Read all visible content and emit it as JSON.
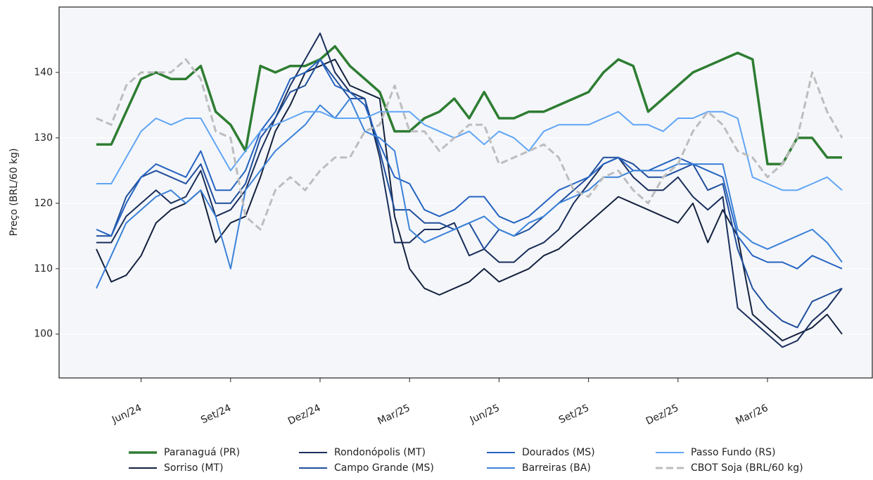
{
  "chart_data": {
    "type": "line",
    "y_label": "Preço (BRL/60 kg)",
    "categories": [
      null,
      null,
      null,
      "Jun/24",
      null,
      null,
      null,
      null,
      null,
      "Set/24",
      null,
      null,
      null,
      null,
      null,
      "Dez/24",
      null,
      null,
      null,
      null,
      null,
      "Mar/25",
      null,
      null,
      null,
      null,
      null,
      "Jun/25",
      null,
      null,
      null,
      null,
      null,
      "Set/25",
      null,
      null,
      null,
      null,
      null,
      "Dez/25",
      null,
      null,
      null,
      null,
      null,
      "Mar/26",
      null,
      null,
      null,
      null,
      null
    ],
    "ylim": [
      93.3,
      150
    ],
    "yticks": [
      100,
      110,
      120,
      130,
      140
    ],
    "grid": true,
    "legend": "bottom",
    "series": [
      {
        "name": "Paranaguá (PR)",
        "color": "#2e7d32",
        "width": 3.5,
        "values": [
          129,
          129,
          134,
          139,
          140,
          139,
          139,
          141,
          134,
          132,
          128,
          141,
          140,
          141,
          141,
          142,
          144,
          141,
          139,
          137,
          131,
          131,
          133,
          134,
          136,
          133,
          137,
          133,
          133,
          134,
          134,
          135,
          136,
          137,
          140,
          142,
          141,
          134,
          136,
          138,
          140,
          141,
          142,
          143,
          142,
          126,
          126,
          130,
          130,
          127,
          127
        ]
      },
      {
        "name": "Sorriso (MT)",
        "color": "#14213d",
        "width": 2,
        "values": [
          113,
          108,
          109,
          112,
          117,
          119,
          120,
          122,
          114,
          117,
          118,
          124,
          131,
          135,
          140,
          141,
          142,
          138,
          137,
          136,
          118,
          110,
          107,
          106,
          107,
          108,
          110,
          108,
          109,
          110,
          112,
          113,
          115,
          117,
          119,
          121,
          120,
          119,
          118,
          117,
          120,
          114,
          119,
          115,
          103,
          101,
          99,
          100,
          101,
          103,
          100
        ]
      },
      {
        "name": "Rondonópolis (MT)",
        "color": "#1a2e5a",
        "width": 2,
        "values": [
          114,
          114,
          118,
          120,
          122,
          120,
          121,
          125,
          118,
          119,
          122,
          128,
          133,
          138,
          142,
          146,
          140,
          137,
          136,
          127,
          114,
          114,
          116,
          116,
          117,
          112,
          113,
          111,
          111,
          113,
          114,
          116,
          120,
          123,
          126,
          127,
          124,
          122,
          122,
          124,
          121,
          119,
          121,
          104,
          102,
          100,
          98,
          99,
          102,
          104,
          107
        ]
      },
      {
        "name": "Campo Grande (MS)",
        "color": "#1f4e9a",
        "width": 2,
        "values": [
          115,
          115,
          121,
          124,
          125,
          124,
          123,
          126,
          120,
          120,
          123,
          130,
          133,
          137,
          138,
          142,
          139,
          136,
          136,
          128,
          119,
          119,
          117,
          117,
          116,
          117,
          113,
          116,
          115,
          116,
          118,
          120,
          122,
          124,
          127,
          127,
          126,
          124,
          124,
          125,
          126,
          122,
          123,
          113,
          107,
          104,
          102,
          101,
          105,
          106,
          107
        ]
      },
      {
        "name": "Dourados (MS)",
        "color": "#2563c0",
        "width": 2,
        "values": [
          116,
          115,
          120,
          124,
          126,
          125,
          124,
          128,
          122,
          122,
          125,
          131,
          134,
          139,
          140,
          142,
          138,
          137,
          135,
          129,
          124,
          123,
          119,
          118,
          119,
          121,
          121,
          118,
          117,
          118,
          120,
          122,
          123,
          124,
          126,
          127,
          125,
          125,
          126,
          127,
          126,
          125,
          124,
          115,
          112,
          111,
          111,
          110,
          112,
          111,
          110
        ]
      },
      {
        "name": "Barreiras (BA)",
        "color": "#3b82d8",
        "width": 2,
        "values": [
          107,
          112,
          117,
          119,
          121,
          122,
          120,
          122,
          118,
          110,
          122,
          125,
          128,
          130,
          132,
          135,
          133,
          136,
          131,
          130,
          128,
          116,
          114,
          115,
          116,
          117,
          118,
          116,
          115,
          117,
          118,
          120,
          121,
          122,
          124,
          124,
          125,
          125,
          125,
          126,
          126,
          126,
          126,
          116,
          114,
          113,
          114,
          115,
          116,
          114,
          111
        ]
      },
      {
        "name": "Passo Fundo (RS)",
        "color": "#60a5f5",
        "width": 2,
        "values": [
          123,
          123,
          127,
          131,
          133,
          132,
          133,
          133,
          129,
          125,
          128,
          131,
          132,
          133,
          134,
          134,
          133,
          133,
          133,
          134,
          134,
          134,
          132,
          131,
          130,
          131,
          129,
          131,
          130,
          128,
          131,
          132,
          132,
          132,
          133,
          134,
          132,
          132,
          131,
          133,
          133,
          134,
          134,
          133,
          124,
          123,
          122,
          122,
          123,
          124,
          122
        ]
      },
      {
        "name": "CBOT Soja (BRL/60 kg)",
        "color": "#bdbdbd",
        "width": 3,
        "linestyle": "dashed",
        "values": [
          133,
          132,
          138,
          140,
          140,
          140,
          142,
          139,
          131,
          130,
          118,
          116,
          122,
          124,
          122,
          125,
          127,
          127,
          131,
          132,
          138,
          131,
          131,
          128,
          130,
          132,
          132,
          126,
          127,
          128,
          129,
          127,
          122,
          121,
          124,
          125,
          122,
          120,
          124,
          126,
          131,
          134,
          132,
          128,
          127,
          124,
          126,
          130,
          140,
          134,
          130
        ]
      }
    ]
  }
}
